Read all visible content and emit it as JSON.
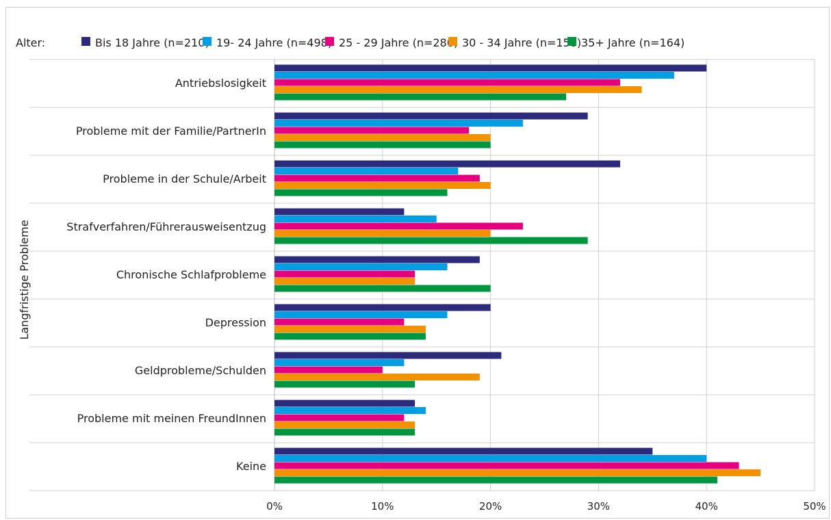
{
  "chart_data": {
    "type": "bar",
    "orientation": "horizontal",
    "legend_title": "Alter:",
    "legend_position": "top",
    "ylabel": "Langfristige Probleme",
    "xlim": [
      0,
      50
    ],
    "x_ticks": [
      0,
      10,
      20,
      30,
      40,
      50
    ],
    "x_tick_labels": [
      "0%",
      "10%",
      "20%",
      "30%",
      "40%",
      "50%"
    ],
    "grid": true,
    "categories": [
      "Antriebslosigkeit",
      "Probleme mit der Familie/PartnerIn",
      "Probleme in der Schule/Arbeit",
      "Strafverfahren/Führerausweisentzug",
      "Chronische Schlafprobleme",
      "Depression",
      "Geldprobleme/Schulden",
      "Probleme mit meinen FreundInnen",
      "Keine"
    ],
    "series": [
      {
        "name": "Bis 18 Jahre (n=210)",
        "color": "#2e2a7b",
        "values": [
          40,
          29,
          32,
          12,
          19,
          20,
          21,
          13,
          35
        ]
      },
      {
        "name": "19- 24 Jahre (n=498)",
        "color": "#009fe3",
        "values": [
          37,
          23,
          17,
          15,
          16,
          16,
          12,
          14,
          40
        ]
      },
      {
        "name": "25 - 29 Jahre (n=280)",
        "color": "#e6007e",
        "values": [
          32,
          18,
          19,
          23,
          13,
          12,
          10,
          12,
          43
        ]
      },
      {
        "name": "30 - 34 Jahre (n=158)",
        "color": "#f39200",
        "values": [
          34,
          20,
          20,
          20,
          13,
          14,
          19,
          13,
          45
        ]
      },
      {
        "name": "35+ Jahre (n=164)",
        "color": "#009640",
        "values": [
          27,
          20,
          16,
          29,
          20,
          14,
          13,
          13,
          41
        ]
      }
    ]
  }
}
